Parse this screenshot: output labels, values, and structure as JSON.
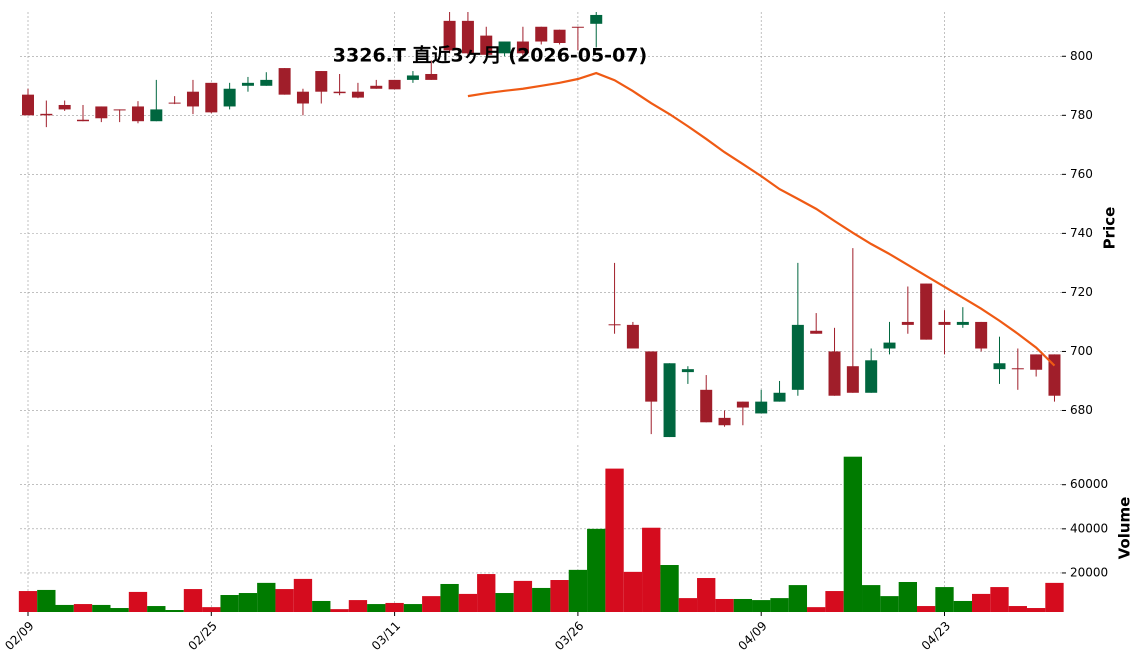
{
  "chart_data": {
    "type": "candlestick",
    "title": "3326.T 直近3ヶ月 (2026-05-07)",
    "categories": [
      "02/09",
      null,
      null,
      null,
      null,
      null,
      null,
      null,
      null,
      null,
      "02/25",
      null,
      null,
      null,
      null,
      null,
      null,
      null,
      null,
      null,
      "03/11",
      null,
      null,
      null,
      null,
      null,
      null,
      null,
      null,
      null,
      "03/26",
      null,
      null,
      null,
      null,
      null,
      null,
      null,
      null,
      null,
      "04/09",
      null,
      null,
      null,
      null,
      null,
      null,
      null,
      null,
      null,
      "04/23",
      null,
      null,
      null,
      null,
      null,
      null
    ],
    "open": [
      787,
      780.5,
      783.5,
      778.5,
      783,
      782,
      783,
      778,
      784.3,
      788,
      791,
      783,
      790,
      790,
      796,
      788,
      795,
      788,
      788,
      790,
      792,
      792,
      794,
      812,
      812,
      807,
      801,
      805,
      810,
      809,
      810,
      811,
      709.2,
      709,
      700,
      671,
      693,
      687,
      677.5,
      683,
      679,
      683,
      687,
      707,
      700,
      695,
      686,
      701,
      710,
      723,
      710,
      709,
      710,
      694,
      694.3,
      699,
      699
    ],
    "high": [
      789,
      785,
      785,
      783.5,
      783,
      782,
      784.8,
      792,
      786.5,
      792,
      791,
      791,
      793,
      794.6,
      796,
      789,
      795,
      794,
      791,
      792,
      792,
      795,
      798.6,
      815,
      815,
      810,
      805,
      810,
      810,
      809,
      810,
      815,
      730,
      710,
      700,
      696,
      695,
      692,
      680,
      683,
      687,
      690,
      730,
      713,
      708,
      735,
      701,
      710,
      722,
      723,
      714,
      715,
      710,
      705,
      701,
      699,
      699
    ],
    "low": [
      780,
      776,
      781.5,
      778,
      777.7,
      777.7,
      777.3,
      778,
      783.8,
      780.4,
      780.7,
      782,
      788,
      790,
      787,
      780,
      784,
      786.8,
      785.8,
      789,
      788.8,
      791,
      792,
      801,
      800,
      800.5,
      800,
      800,
      804,
      804,
      802,
      803,
      706,
      701,
      672,
      671,
      689,
      676,
      674.5,
      675,
      679,
      683,
      685,
      706,
      685,
      686,
      686,
      699,
      706,
      704,
      699,
      708,
      700,
      689,
      687,
      691.5,
      683
    ],
    "close": [
      780,
      780,
      782,
      778,
      779,
      781.8,
      778,
      782,
      784,
      783,
      781,
      789,
      791,
      792,
      787,
      784,
      788,
      787.5,
      786,
      789,
      788.8,
      793.5,
      792,
      802,
      801,
      800.5,
      805,
      801,
      805,
      804.5,
      809.7,
      814,
      709,
      701,
      683,
      696,
      694,
      676,
      675,
      681,
      683,
      686,
      709,
      706,
      685,
      686,
      697,
      703,
      709,
      704,
      709,
      710,
      701,
      696,
      694,
      693.8,
      685
    ],
    "up_color": "#00663f",
    "down_color": "#a01e2a",
    "ylabel": "Price",
    "ylim": [
      670,
      815
    ],
    "yticks": [
      680,
      700,
      720,
      740,
      760,
      780,
      800
    ],
    "grid": true,
    "ma": {
      "color": "#ef5a14",
      "values": [
        null,
        null,
        null,
        null,
        null,
        null,
        null,
        null,
        null,
        null,
        null,
        null,
        null,
        null,
        null,
        null,
        null,
        null,
        null,
        null,
        null,
        null,
        null,
        null,
        786.5,
        787.5,
        788.3,
        789,
        790,
        791,
        792.3,
        794.3,
        791.9,
        788.2,
        784.1,
        780.4,
        776.3,
        772,
        767.5,
        763.5,
        759.4,
        755,
        751.7,
        748.3,
        744.2,
        740.2,
        736.4,
        733,
        729.3,
        725.6,
        721.9,
        718.2,
        714.5,
        710.4,
        706,
        701.3,
        695.2
      ]
    },
    "volume": {
      "ylabel": "Volume",
      "ylim": [
        2300,
        78000
      ],
      "yticks": [
        20000,
        40000,
        60000
      ],
      "up_color": "#007b00",
      "down_color": "#d50c1e",
      "values": [
        11800,
        12300,
        5500,
        5900,
        5500,
        4100,
        11400,
        5000,
        3200,
        12700,
        4500,
        10000,
        10900,
        15500,
        12700,
        17300,
        7300,
        3600,
        7700,
        5900,
        6400,
        5900,
        9500,
        15000,
        10500,
        19500,
        10900,
        16400,
        13200,
        16800,
        21400,
        40000,
        67300,
        20500,
        40500,
        23600,
        8600,
        17700,
        8200,
        8200,
        7700,
        8600,
        14500,
        4500,
        11800,
        72700,
        14500,
        9500,
        15900,
        5000,
        13600,
        7300,
        10500,
        13600,
        5000,
        4100,
        15500
      ]
    }
  }
}
